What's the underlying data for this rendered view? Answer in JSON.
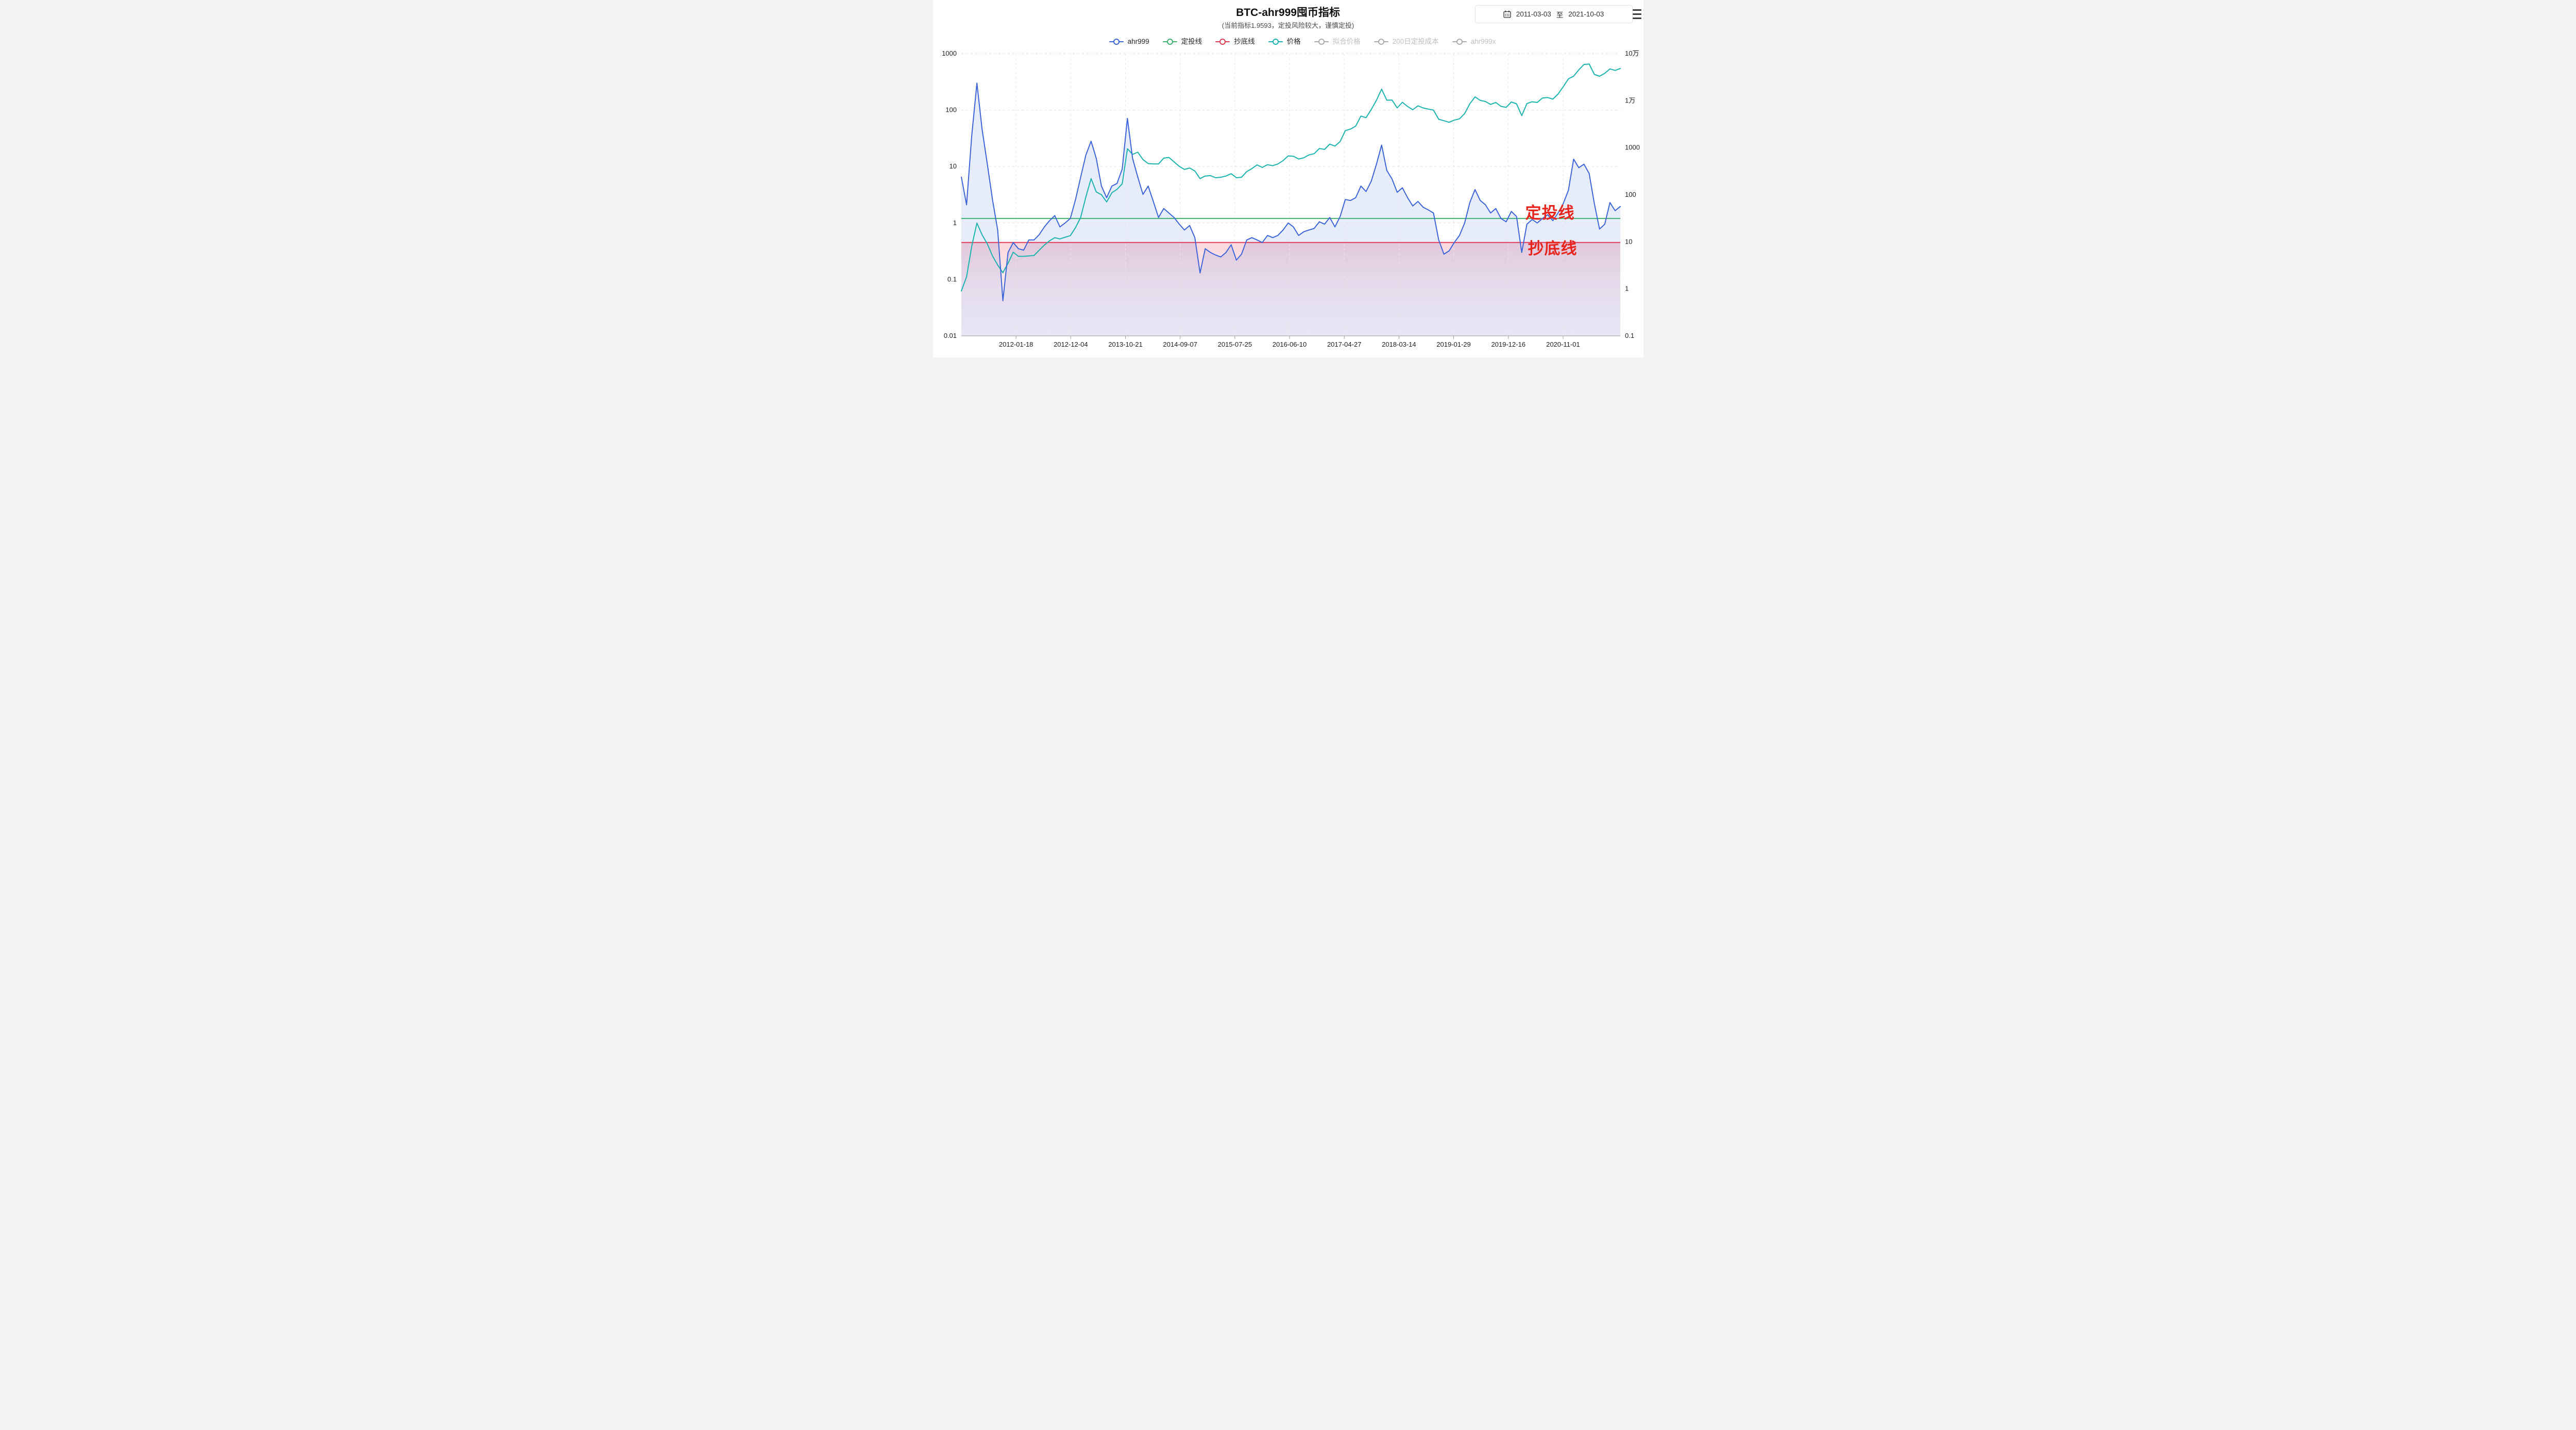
{
  "page": {
    "title": "BTC-ahr999囤币指标",
    "subtitle": "(当前指标1.9593，定投风险较大，谨慎定投)"
  },
  "toolbar": {
    "date_start": "2011-03-03",
    "date_separator": "至",
    "date_end": "2021-10-03",
    "calendar_icon": "calendar-icon",
    "menu_icon": "hamburger-menu-icon"
  },
  "legend": {
    "text_color": "#262626",
    "disabled_text_color": "#bfbfbf",
    "disabled_marker_color": "#ababab",
    "items": [
      {
        "label": "ahr999",
        "color": "#3D63D9",
        "enabled": true
      },
      {
        "label": "定投线",
        "color": "#3DB26F",
        "enabled": true
      },
      {
        "label": "抄底线",
        "color": "#E43A56",
        "enabled": true
      },
      {
        "label": "价格",
        "color": "#1AB3AD",
        "enabled": true
      },
      {
        "label": "拟合价格",
        "color": "#ababab",
        "enabled": false
      },
      {
        "label": "200日定投成本",
        "color": "#ababab",
        "enabled": false
      },
      {
        "label": "ahr999x",
        "color": "#ababab",
        "enabled": false
      }
    ]
  },
  "chart_data": {
    "type": "line",
    "title": "BTC-ahr999囤币指标",
    "current_value": 1.9593,
    "x_axis": {
      "start": "2011-03-03",
      "end": "2021-10-03",
      "unit": "month",
      "points": 128,
      "total_days": 3867,
      "tick_labels": [
        "2012-01-18",
        "2012-12-04",
        "2013-10-21",
        "2014-09-07",
        "2015-07-25",
        "2016-06-10",
        "2017-04-27",
        "2018-03-14",
        "2019-01-29",
        "2019-12-16",
        "2020-11-01"
      ],
      "tick_day_offsets": [
        321,
        642,
        963,
        1284,
        1605,
        1926,
        2247,
        2568,
        2889,
        3210,
        3531
      ]
    },
    "left_axis": {
      "scale": "log",
      "min": 0.01,
      "max": 1000,
      "tick_labels": [
        "1000",
        "100",
        "10",
        "1",
        "0.1",
        "0.01"
      ]
    },
    "right_axis": {
      "scale": "log",
      "min": 0.1,
      "max": 100000,
      "tick_labels": [
        "10万",
        "1万",
        "1000",
        "100",
        "10",
        "1",
        "0.1"
      ]
    },
    "grid": {
      "horizontal": true,
      "vertical": true,
      "style": "dashed"
    },
    "series": [
      {
        "name": "ahr999",
        "axis": "left",
        "color": "#3D63D9",
        "area_fill": "rgba(61,99,217,0.12)",
        "values": [
          6.5,
          2.1,
          35,
          300,
          45,
          11,
          2.6,
          0.75,
          0.042,
          0.3,
          0.45,
          0.35,
          0.33,
          0.5,
          0.5,
          0.62,
          0.85,
          1.1,
          1.35,
          0.85,
          1.0,
          1.2,
          2.6,
          6.5,
          16,
          28,
          14,
          4.5,
          2.8,
          4.5,
          5.0,
          9,
          71,
          14,
          6.5,
          3.2,
          4.5,
          2.4,
          1.25,
          1.8,
          1.5,
          1.25,
          0.95,
          0.75,
          0.9,
          0.55,
          0.13,
          0.35,
          0.3,
          0.27,
          0.25,
          0.3,
          0.41,
          0.22,
          0.28,
          0.5,
          0.55,
          0.5,
          0.45,
          0.6,
          0.55,
          0.6,
          0.75,
          1.0,
          0.85,
          0.6,
          0.7,
          0.75,
          0.8,
          1.05,
          0.95,
          1.25,
          0.85,
          1.3,
          2.6,
          2.5,
          2.8,
          4.5,
          3.6,
          5.5,
          11,
          24,
          8.5,
          6.0,
          3.5,
          4.2,
          2.8,
          2.0,
          2.4,
          1.9,
          1.7,
          1.5,
          0.5,
          0.28,
          0.32,
          0.45,
          0.6,
          1.0,
          2.3,
          3.9,
          2.5,
          2.1,
          1.5,
          1.8,
          1.2,
          1.05,
          1.6,
          1.3,
          0.3,
          0.95,
          1.15,
          1.0,
          1.2,
          1.4,
          1.1,
          1.5,
          2.2,
          3.8,
          13.5,
          9.5,
          11,
          7.5,
          2.2,
          0.78,
          0.95,
          2.3,
          1.65,
          1.96
        ]
      },
      {
        "name": "价格",
        "axis": "right",
        "color": "#1AB3AD",
        "values": [
          0.9,
          1.8,
          8,
          25,
          14,
          9,
          5,
          3.2,
          2.2,
          3.5,
          6,
          4.9,
          4.9,
          5,
          5.1,
          6.6,
          8.5,
          10.5,
          12.2,
          11.5,
          12.5,
          13.5,
          20,
          33,
          90,
          220,
          115,
          100,
          70,
          110,
          130,
          170,
          950,
          720,
          800,
          560,
          460,
          450,
          450,
          600,
          620,
          500,
          400,
          345,
          370,
          320,
          220,
          250,
          255,
          230,
          235,
          250,
          280,
          230,
          235,
          310,
          360,
          430,
          380,
          435,
          415,
          450,
          530,
          670,
          655,
          575,
          610,
          700,
          745,
          960,
          920,
          1190,
          1080,
          1350,
          2300,
          2480,
          2870,
          4700,
          4340,
          6470,
          10200,
          17500,
          10200,
          10300,
          7000,
          9240,
          7500,
          6400,
          7750,
          7000,
          6600,
          6300,
          4020,
          3740,
          3460,
          3850,
          4100,
          5320,
          8560,
          12000,
          10100,
          9600,
          8300,
          9150,
          7550,
          7200,
          9350,
          8550,
          4800,
          8650,
          9450,
          9140,
          11350,
          11650,
          10780,
          13800,
          19700,
          29000,
          33100,
          45140,
          58800,
          60000,
          36000,
          33000,
          38000,
          47150,
          43800,
          48200
        ]
      },
      {
        "name": "定投线",
        "type": "hline",
        "axis": "left",
        "value": 1.2,
        "color": "#3DB26F"
      },
      {
        "name": "抄底线",
        "type": "hline",
        "axis": "left",
        "value": 0.45,
        "color": "#E43A56",
        "below_fill": "pink-gradient"
      }
    ],
    "annotations": [
      {
        "text": "定投线",
        "color": "#E8251D",
        "anchor_value": 1.2
      },
      {
        "text": "抄底线",
        "color": "#E8251D",
        "anchor_value": 0.45
      }
    ]
  }
}
